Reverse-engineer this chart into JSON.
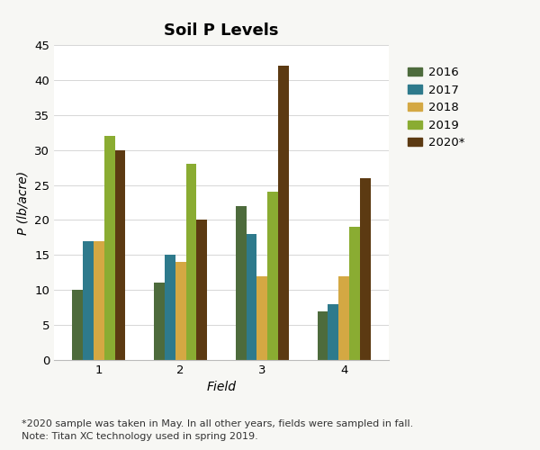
{
  "title": "Soil P Levels",
  "xlabel": "Field",
  "ylabel": "P (lb/acre)",
  "fields": [
    1,
    2,
    3,
    4
  ],
  "years": [
    "2016",
    "2017",
    "2018",
    "2019",
    "2020*"
  ],
  "values": {
    "2016": [
      10,
      11,
      22,
      7
    ],
    "2017": [
      17,
      15,
      18,
      8
    ],
    "2018": [
      17,
      14,
      12,
      12
    ],
    "2019": [
      32,
      28,
      24,
      19
    ],
    "2020*": [
      30,
      20,
      42,
      26
    ]
  },
  "colors": {
    "2016": "#4d6b3c",
    "2017": "#2e7a8c",
    "2018": "#d4a843",
    "2019": "#8aac32",
    "2020*": "#5c3a12"
  },
  "ylim": [
    0,
    45
  ],
  "yticks": [
    0,
    5,
    10,
    15,
    20,
    25,
    30,
    35,
    40,
    45
  ],
  "footnote": "*2020 sample was taken in May. In all other years, fields were sampled in fall.\nNote: Titan XC technology used in spring 2019.",
  "background_color": "#f7f7f4",
  "plot_bg_color": "#ffffff",
  "title_fontsize": 13,
  "axis_label_fontsize": 10,
  "tick_fontsize": 9.5,
  "legend_fontsize": 9.5,
  "footnote_fontsize": 8
}
